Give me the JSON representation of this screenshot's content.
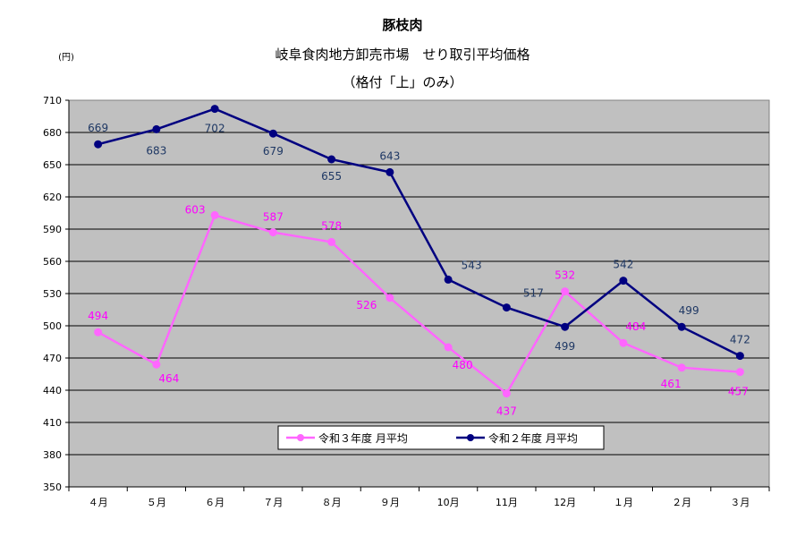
{
  "chart_data": {
    "type": "line",
    "title": "豚枝肉",
    "subtitle": "岐阜食肉地方卸売市場　せり取引平均価格",
    "subtitle2": "（格付「上」のみ）",
    "unit_label": "(円)",
    "categories": [
      "４月",
      "５月",
      "６月",
      "７月",
      "８月",
      "９月",
      "10月",
      "11月",
      "12月",
      "１月",
      "２月",
      "３月"
    ],
    "ylim": [
      350,
      710
    ],
    "yticks": [
      350,
      380,
      410,
      440,
      470,
      500,
      530,
      560,
      590,
      620,
      650,
      680,
      710
    ],
    "grid": true,
    "legend_position": "bottom-right",
    "colors": {
      "plot_bg": "#c0c0c0",
      "r3": "#ff66ff",
      "r2": "#000080",
      "r3_label": "#ff00ff",
      "r2_label": "#1f3864"
    },
    "series": [
      {
        "name": "令和３年度 月平均",
        "values": [
          494,
          464,
          603,
          587,
          578,
          526,
          480,
          437,
          532,
          484,
          461,
          457
        ]
      },
      {
        "name": "令和２年度 月平均",
        "values": [
          669,
          683,
          702,
          679,
          655,
          643,
          543,
          517,
          499,
          542,
          499,
          472
        ]
      }
    ]
  }
}
